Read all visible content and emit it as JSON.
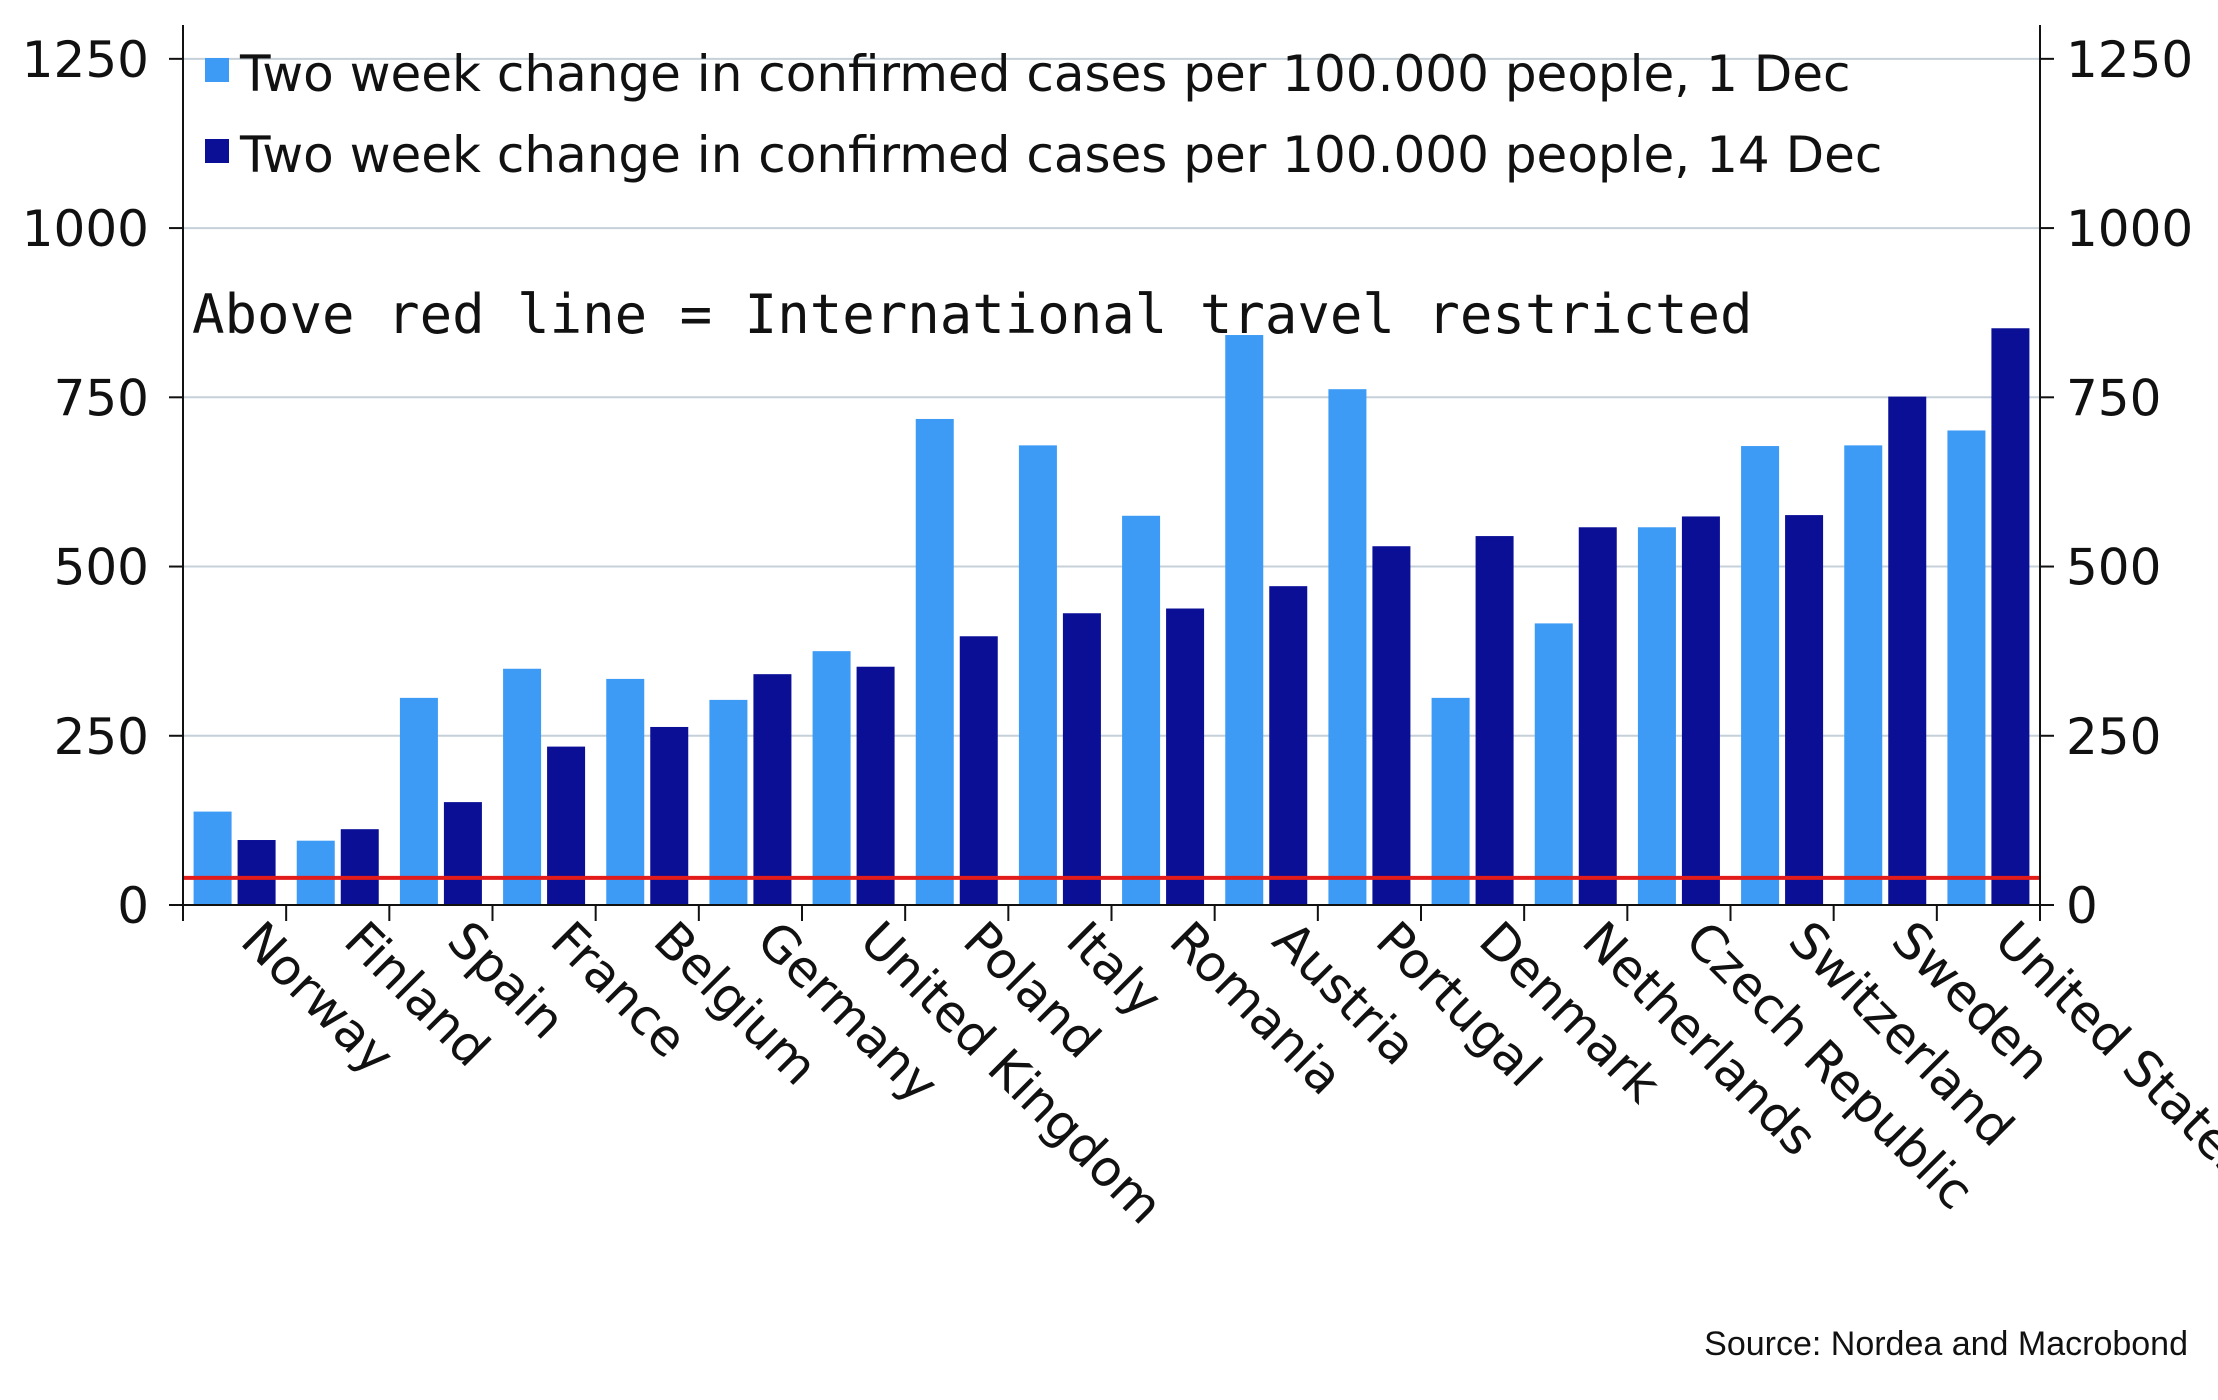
{
  "chart_data": {
    "type": "bar",
    "categories": [
      "Norway",
      "Finland",
      "Spain",
      "France",
      "Belgium",
      "Germany",
      "United Kingdom",
      "Poland",
      "Italy",
      "Romania",
      "Austria",
      "Portugal",
      "Denmark",
      "Netherlands",
      "Czech Republic",
      "Switzerland",
      "Sweden",
      "United States"
    ],
    "series": [
      {
        "name": "Two week change in confirmed cases per 100.000 people, 1 Dec",
        "color": "#3d9bf5",
        "values": [
          138,
          95,
          306,
          349,
          334,
          303,
          375,
          718,
          679,
          575,
          842,
          762,
          306,
          416,
          558,
          678,
          679,
          701
        ]
      },
      {
        "name": "Two week change in confirmed cases per 100.000 people, 14 Dec",
        "color": "#0a0f96",
        "values": [
          96,
          112,
          152,
          234,
          263,
          341,
          352,
          397,
          431,
          438,
          471,
          530,
          545,
          558,
          574,
          576,
          751,
          852
        ]
      }
    ],
    "threshold": {
      "value": 40,
      "color": "#e21b1b"
    },
    "annotation": "Above red line = International travel restricted",
    "source": "Source: Nordea and Macrobond",
    "ylim": [
      0,
      1300
    ],
    "yticks": [
      0,
      250,
      500,
      750,
      1000,
      1250
    ],
    "grid": true,
    "dual_axis": true,
    "legend_position": "top-left"
  }
}
